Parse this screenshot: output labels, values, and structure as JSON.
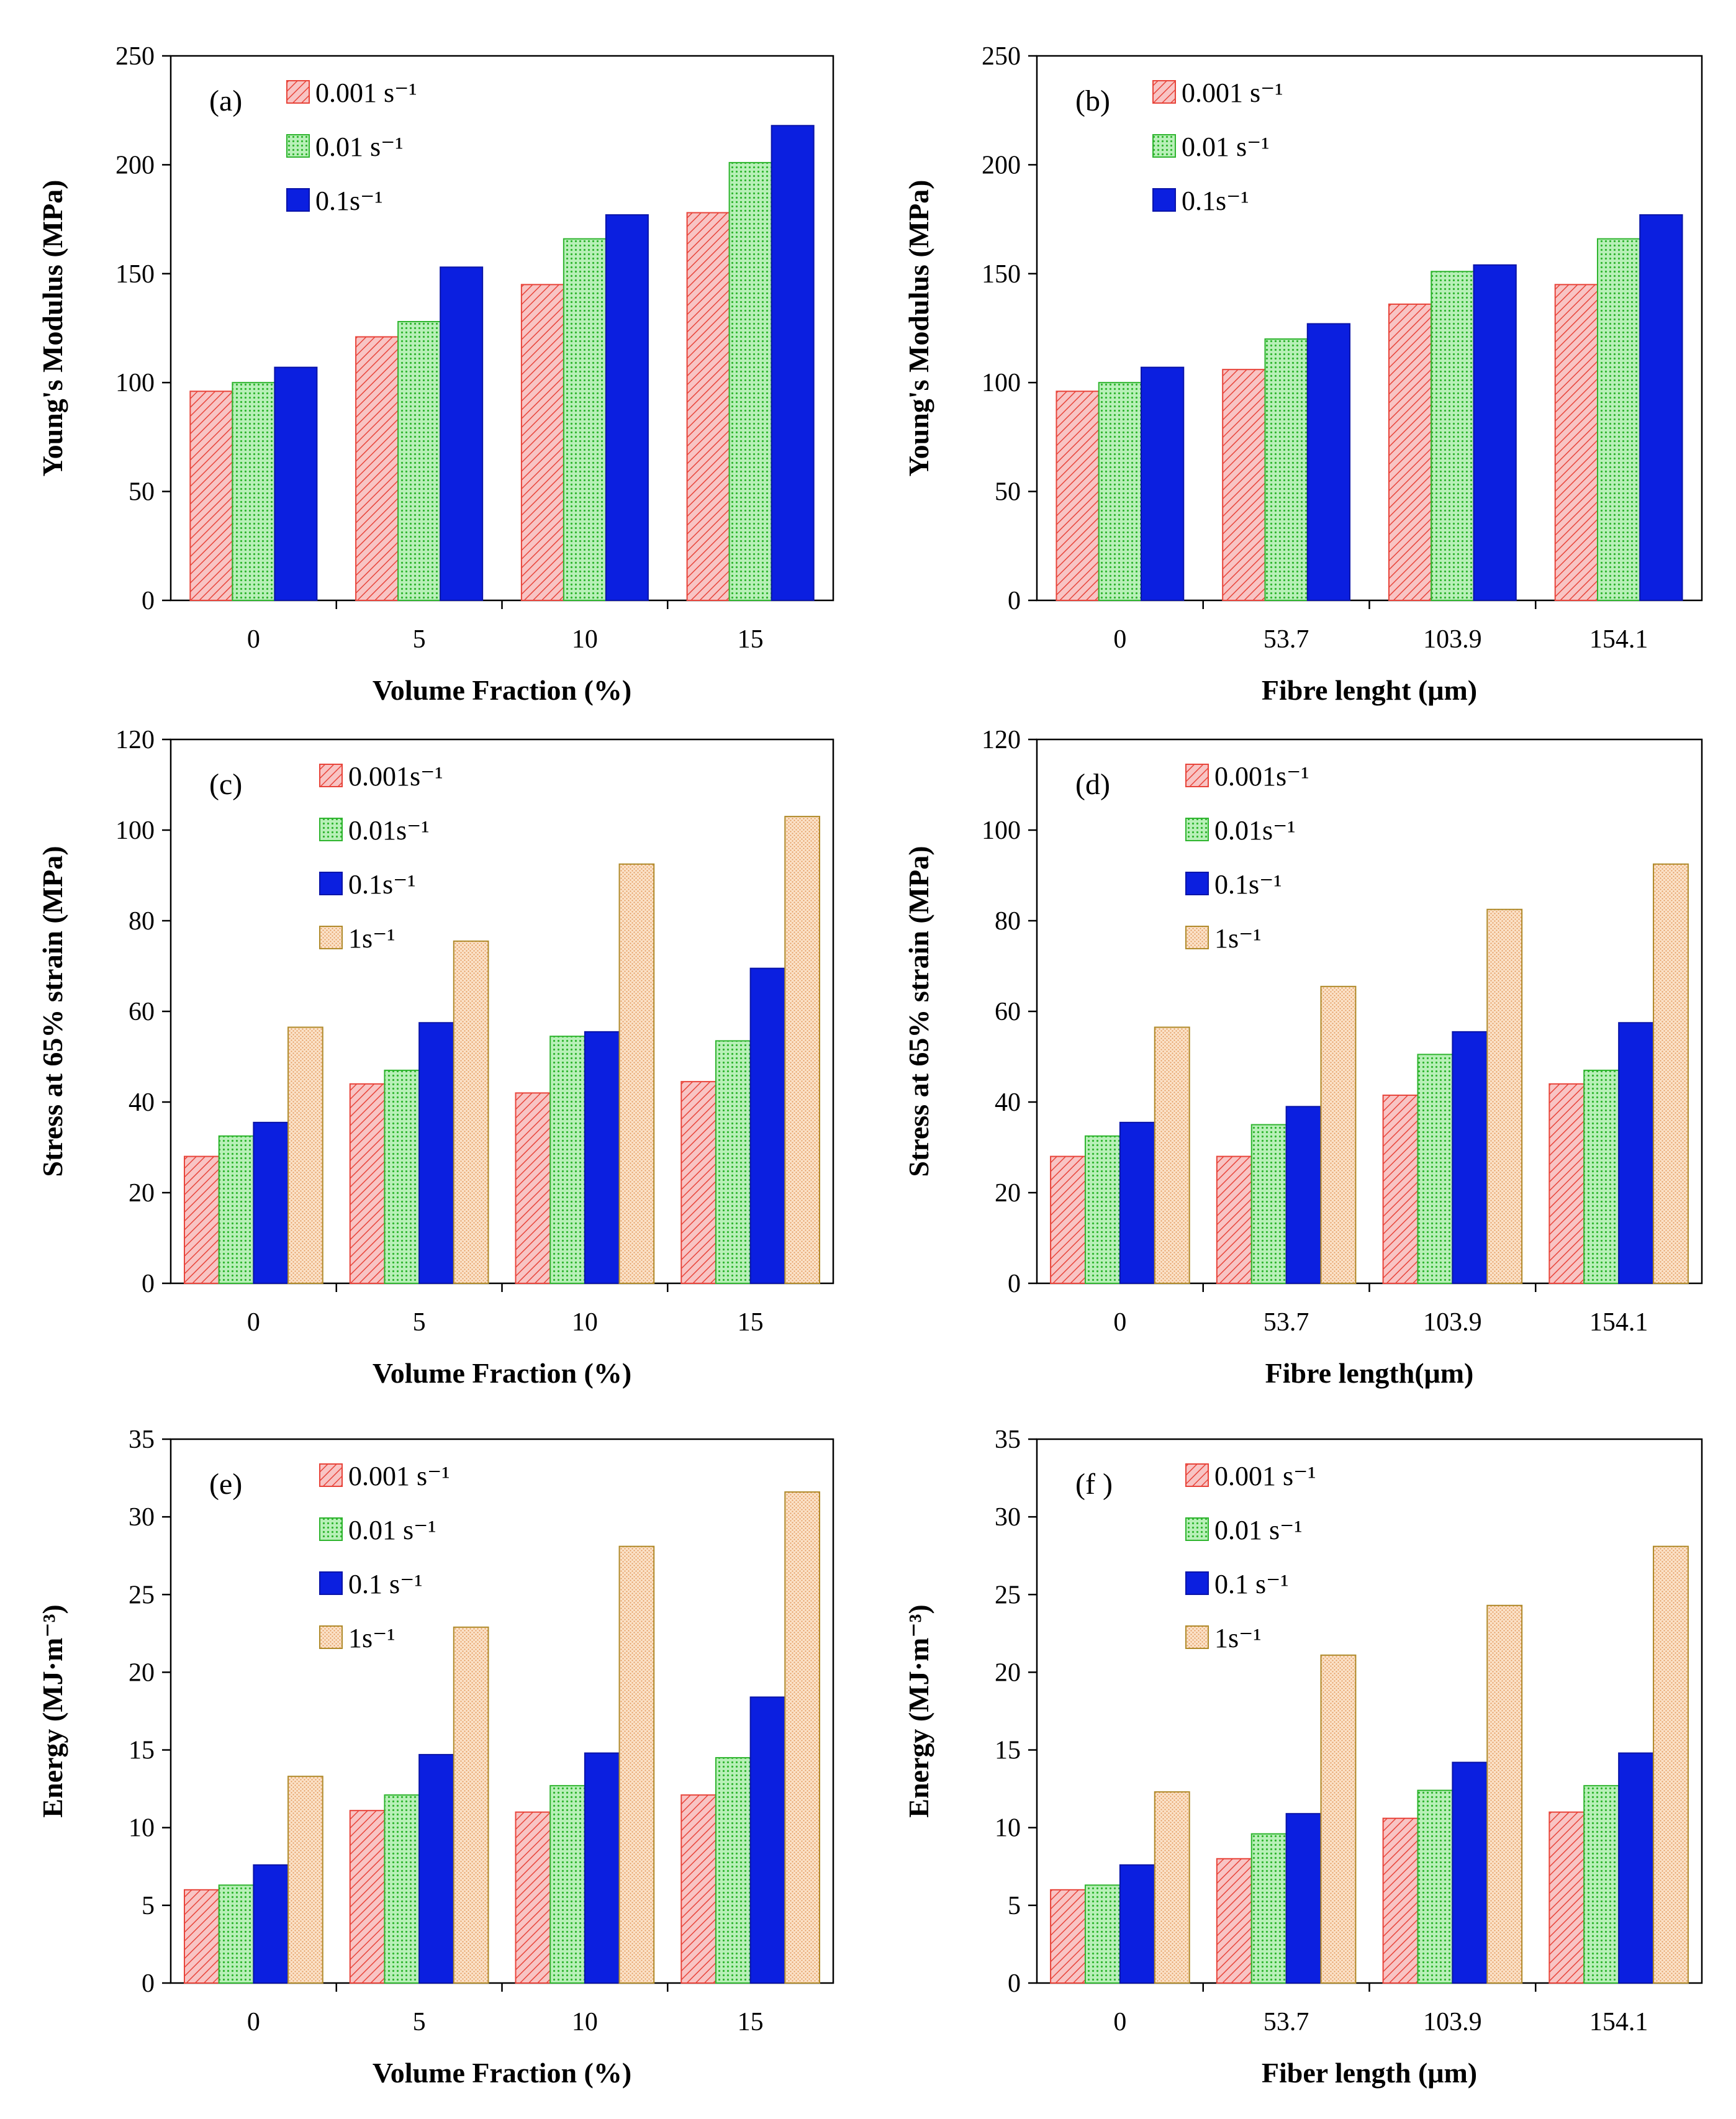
{
  "chart_data": [
    {
      "type": "bar",
      "panel": "(a)",
      "title": "",
      "xlabel": "Volume Fraction (%)",
      "ylabel": "Young's Modulus (MPa)",
      "ylim": [
        0,
        250
      ],
      "yticks": [
        0,
        50,
        100,
        150,
        200,
        250
      ],
      "categories": [
        "0",
        "5",
        "10",
        "15"
      ],
      "legend_position": "top-left",
      "series": [
        {
          "name": "0.001 s⁻¹",
          "values": [
            96,
            121,
            145,
            178
          ]
        },
        {
          "name": "0.01 s⁻¹",
          "values": [
            100,
            128,
            166,
            201
          ]
        },
        {
          "name": "0.1s⁻¹",
          "values": [
            107,
            153,
            177,
            218
          ]
        }
      ]
    },
    {
      "type": "bar",
      "panel": "(b)",
      "title": "",
      "xlabel": "Fibre lenght (μm)",
      "ylabel": "Young's Modulus (MPa)",
      "ylim": [
        0,
        250
      ],
      "yticks": [
        0,
        50,
        100,
        150,
        200,
        250
      ],
      "categories": [
        "0",
        "53.7",
        "103.9",
        "154.1"
      ],
      "legend_position": "top-left",
      "series": [
        {
          "name": "0.001 s⁻¹",
          "values": [
            96,
            106,
            136,
            145
          ]
        },
        {
          "name": "0.01 s⁻¹",
          "values": [
            100,
            120,
            151,
            166
          ]
        },
        {
          "name": "0.1s⁻¹",
          "values": [
            107,
            127,
            154,
            177
          ]
        }
      ]
    },
    {
      "type": "bar",
      "panel": "(c)",
      "title": "",
      "xlabel": "Volume Fraction (%)",
      "ylabel": "Stress at 65% strain (MPa)",
      "ylim": [
        0,
        120
      ],
      "yticks": [
        0,
        20,
        40,
        60,
        80,
        100,
        120
      ],
      "categories": [
        "0",
        "5",
        "10",
        "15"
      ],
      "legend_position": "top-left",
      "series": [
        {
          "name": "0.001s⁻¹",
          "values": [
            28,
            44,
            42,
            44.5
          ]
        },
        {
          "name": "0.01s⁻¹",
          "values": [
            32.5,
            47,
            54.5,
            53.5
          ]
        },
        {
          "name": "0.1s⁻¹",
          "values": [
            35.5,
            57.5,
            55.5,
            69.5
          ]
        },
        {
          "name": "1s⁻¹",
          "values": [
            56.5,
            75.5,
            92.5,
            103
          ]
        }
      ]
    },
    {
      "type": "bar",
      "panel": "(d)",
      "title": "",
      "xlabel": "Fibre length(μm)",
      "ylabel": "Stress at 65% strain (MPa)",
      "ylim": [
        0,
        120
      ],
      "yticks": [
        0,
        20,
        40,
        60,
        80,
        100,
        120
      ],
      "categories": [
        "0",
        "53.7",
        "103.9",
        "154.1"
      ],
      "legend_position": "top-left",
      "series": [
        {
          "name": "0.001s⁻¹",
          "values": [
            28,
            28,
            41.5,
            44
          ]
        },
        {
          "name": "0.01s⁻¹",
          "values": [
            32.5,
            35,
            50.5,
            47
          ]
        },
        {
          "name": "0.1s⁻¹",
          "values": [
            35.5,
            39,
            55.5,
            57.5
          ]
        },
        {
          "name": "1s⁻¹",
          "values": [
            56.5,
            65.5,
            82.5,
            92.5
          ]
        }
      ]
    },
    {
      "type": "bar",
      "panel": "(e)",
      "title": "",
      "xlabel": "Volume Fraction (%)",
      "ylabel": "Energy (MJ·m⁻³)",
      "ylim": [
        0,
        35
      ],
      "yticks": [
        0,
        5,
        10,
        15,
        20,
        25,
        30,
        35
      ],
      "categories": [
        "0",
        "5",
        "10",
        "15"
      ],
      "legend_position": "top-left",
      "series": [
        {
          "name": "0.001 s⁻¹",
          "values": [
            6,
            11.1,
            11,
            12.1
          ]
        },
        {
          "name": "0.01 s⁻¹",
          "values": [
            6.3,
            12.1,
            12.7,
            14.5
          ]
        },
        {
          "name": "0.1 s⁻¹",
          "values": [
            7.6,
            14.7,
            14.8,
            18.4
          ]
        },
        {
          "name": "1s⁻¹",
          "values": [
            13.3,
            22.9,
            28.1,
            31.6
          ]
        }
      ]
    },
    {
      "type": "bar",
      "panel": "(f )",
      "title": "",
      "xlabel": "Fiber length (μm)",
      "ylabel": "Energy (MJ·m⁻³)",
      "ylim": [
        0,
        35
      ],
      "yticks": [
        0,
        5,
        10,
        15,
        20,
        25,
        30,
        35
      ],
      "categories": [
        "0",
        "53.7",
        "103.9",
        "154.1"
      ],
      "legend_position": "top-left",
      "series": [
        {
          "name": "0.001 s⁻¹",
          "values": [
            6,
            8,
            10.6,
            11
          ]
        },
        {
          "name": "0.01 s⁻¹",
          "values": [
            6.3,
            9.6,
            12.4,
            12.7
          ]
        },
        {
          "name": "0.1 s⁻¹",
          "values": [
            7.6,
            10.9,
            14.2,
            14.8
          ]
        },
        {
          "name": "1s⁻¹",
          "values": [
            12.3,
            21.1,
            24.3,
            28.1
          ]
        }
      ]
    }
  ],
  "series_styles": [
    {
      "fill": "#f4a2a2",
      "stroke": "#e8443a",
      "pattern": "diagonal"
    },
    {
      "fill": "#9fe69f",
      "stroke": "#2fb52f",
      "pattern": "dots"
    },
    {
      "fill": "#0b1fe0",
      "stroke": "#0a14a8",
      "pattern": "solid"
    },
    {
      "fill": "#f6c9a0",
      "stroke": "#b08a2a",
      "pattern": "stipple"
    }
  ]
}
